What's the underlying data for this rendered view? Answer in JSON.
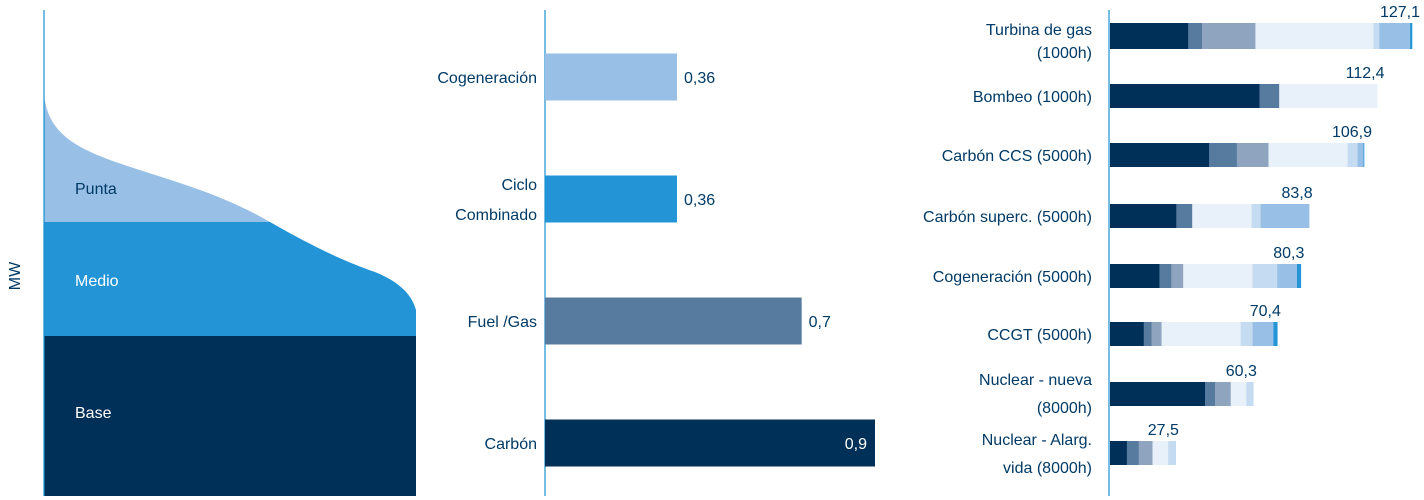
{
  "colors": {
    "navy": "#003057",
    "slate": "#577b9e",
    "grayblue": "#8fa5bf",
    "pale": "#e8f0f9",
    "light": "#c4dbf1",
    "sky": "#98bfe6",
    "cyan": "#2394d6",
    "text": "#003a66",
    "axis": "#1b8fd0"
  },
  "chart_data": [
    {
      "type": "area",
      "ylabel": "MW",
      "bands": [
        {
          "name": "Punta",
          "color": "#98bfe6"
        },
        {
          "name": "Medio",
          "color": "#2394d6"
        },
        {
          "name": "Base",
          "color": "#003057"
        }
      ]
    },
    {
      "type": "bar",
      "orientation": "horizontal",
      "categories": [
        "Cogeneración",
        "Ciclo Combinado",
        "Fuel /Gas",
        "Carbón"
      ],
      "category_lines": [
        [
          "Cogeneración"
        ],
        [
          "Ciclo",
          "Combinado"
        ],
        [
          "Fuel /Gas"
        ],
        [
          "Carbón"
        ]
      ],
      "values": [
        0.36,
        0.36,
        0.7,
        0.9
      ],
      "labels": [
        "0,36",
        "0,36",
        "0,7",
        "0,9"
      ],
      "colors": [
        "#98bfe6",
        "#2394d6",
        "#577b9e",
        "#003057"
      ],
      "xlim": [
        0,
        0.9
      ]
    },
    {
      "type": "bar",
      "orientation": "horizontal",
      "stacked": true,
      "categories": [
        "Turbina de gas (1000h)",
        "Bombeo (1000h)",
        "Carbón CCS (5000h)",
        "Carbón superc. (5000h)",
        "Cogeneración (5000h)",
        "CCGT (5000h)",
        "Nuclear - nueva (8000h)",
        "Nuclear - Alarg. vida (8000h)"
      ],
      "category_lines": [
        [
          "Turbina de gas",
          "(1000h)"
        ],
        [
          "Bombeo (1000h)"
        ],
        [
          "Carbón CCS (5000h)"
        ],
        [
          "Carbón superc. (5000h)"
        ],
        [
          "Cogeneración (5000h)"
        ],
        [
          "CCGT (5000h)"
        ],
        [
          "Nuclear - nueva",
          "(8000h)"
        ],
        [
          "Nuclear - Alarg.",
          "vida (8000h)"
        ]
      ],
      "totals": [
        127.1,
        112.4,
        106.9,
        83.8,
        80.3,
        70.4,
        60.3,
        27.5
      ],
      "total_labels": [
        "127,1",
        "112,4",
        "106,9",
        "83,8",
        "80,3",
        "70,4",
        "60,3",
        "27,5"
      ],
      "segment_colors": [
        "#003057",
        "#577b9e",
        "#8fa5bf",
        "#e8f0f9",
        "#c4dbf1",
        "#98bfe6",
        "#2394d6"
      ],
      "segments": [
        [
          32.9,
          5.8,
          22.5,
          49.7,
          2.5,
          12.9,
          0.8
        ],
        [
          62.9,
          8.3,
          0,
          41.2,
          0,
          0,
          0
        ],
        [
          41.7,
          11.7,
          13.3,
          33.3,
          4.2,
          2.5,
          0.2
        ],
        [
          27.9,
          6.7,
          0,
          25.0,
          3.8,
          20.4,
          0
        ],
        [
          20.8,
          5.0,
          5.0,
          29.2,
          10.4,
          8.3,
          1.6
        ],
        [
          14.2,
          3.3,
          4.2,
          33.3,
          5.0,
          8.8,
          1.6
        ],
        [
          40.0,
          4.2,
          6.6,
          6.6,
          2.9,
          0,
          0
        ],
        [
          7.1,
          5.0,
          5.8,
          6.6,
          2.9,
          0.1,
          0
        ]
      ],
      "xlim": [
        0,
        127.1
      ]
    }
  ]
}
